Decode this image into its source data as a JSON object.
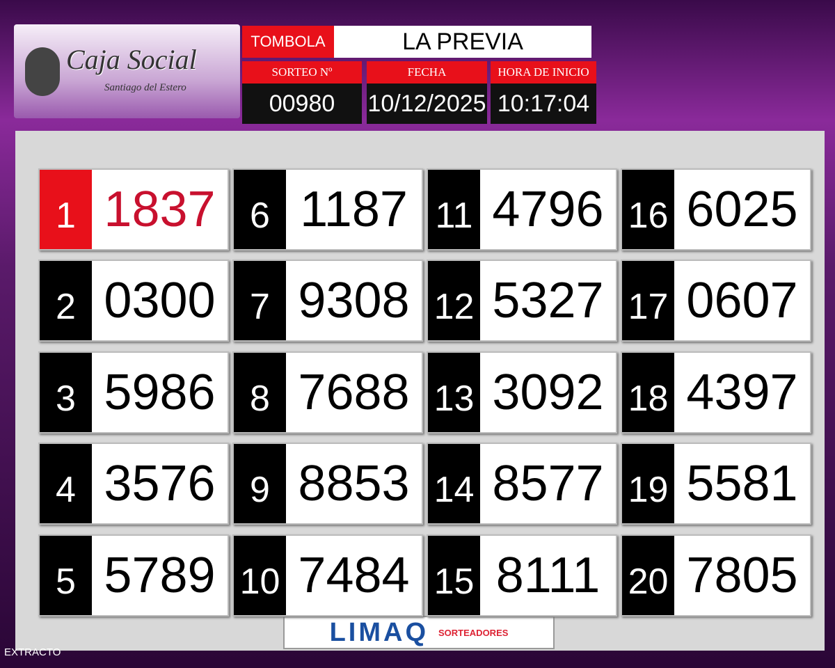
{
  "header": {
    "logo_title": "Caja Social",
    "logo_subtitle": "Santiago del Estero",
    "game": "TOMBOLA",
    "name": "LA PREVIA",
    "fields": [
      {
        "label": "SORTEO Nº",
        "value": "00980"
      },
      {
        "label": "FECHA",
        "value": "10/12/2025"
      },
      {
        "label": "HORA DE INICIO",
        "value": "10:17:04"
      }
    ]
  },
  "results": [
    {
      "position": "1",
      "number": "1837"
    },
    {
      "position": "2",
      "number": "0300"
    },
    {
      "position": "3",
      "number": "5986"
    },
    {
      "position": "4",
      "number": "3576"
    },
    {
      "position": "5",
      "number": "5789"
    },
    {
      "position": "6",
      "number": "1187"
    },
    {
      "position": "7",
      "number": "9308"
    },
    {
      "position": "8",
      "number": "7688"
    },
    {
      "position": "9",
      "number": "8853"
    },
    {
      "position": "10",
      "number": "7484"
    },
    {
      "position": "11",
      "number": "4796"
    },
    {
      "position": "12",
      "number": "5327"
    },
    {
      "position": "13",
      "number": "3092"
    },
    {
      "position": "14",
      "number": "8577"
    },
    {
      "position": "15",
      "number": "8111"
    },
    {
      "position": "16",
      "number": "6025"
    },
    {
      "position": "17",
      "number": "0607"
    },
    {
      "position": "18",
      "number": "4397"
    },
    {
      "position": "19",
      "number": "5581"
    },
    {
      "position": "20",
      "number": "7805"
    }
  ],
  "footer": {
    "brand": "LIMAQ",
    "tagline": "SORTEADORES",
    "status": "EXTRACTO"
  }
}
